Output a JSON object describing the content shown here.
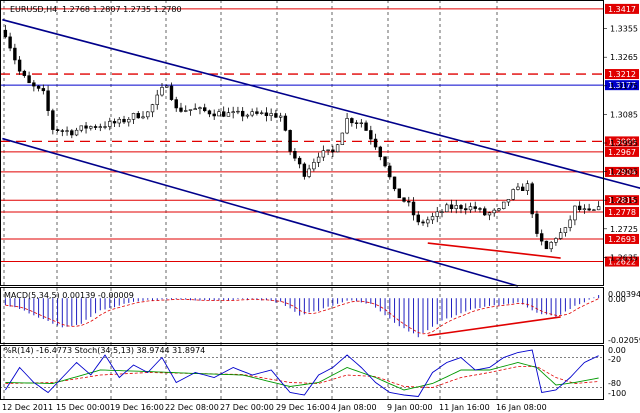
{
  "header": {
    "symbol": "EURUSD,H4",
    "ohlc": "1.2768 1.2807 1.2735 1.2780"
  },
  "macd": {
    "label": "MACD(5,34,5) 0.00139 -0.00009",
    "scale_top": "0.00394",
    "scale_zero": "0.00",
    "scale_bottom": "-0.02059"
  },
  "oscillator": {
    "label": "%R(14) -16.4773  Stoch(34,5,13) 38.9744 31.8974",
    "scale_top": "0.00",
    "scale_mid1": "-20",
    "scale_mid2": "-80",
    "scale_bottom": "-100"
  },
  "colors": {
    "background": "#ffffff",
    "candle": "#000000",
    "red_line": "#e00000",
    "blue_line": "#0000cc",
    "green_line": "#009900",
    "macd_hist": "#2020c0",
    "dark_red": "#cc0000",
    "dark_blue": "#00008b"
  },
  "chart_data": {
    "type": "candlestick",
    "price_ticks": [
      "1.3445",
      "1.3355",
      "1.3265",
      "1.3175",
      "1.3085",
      "1.2995",
      "1.2905",
      "1.2815",
      "1.2725",
      "1.2635",
      "1.2545"
    ],
    "price_range": [
      1.2545,
      1.3445
    ],
    "x_labels": [
      "12 Dec 2011",
      "15 Dec 00:00",
      "19 Dec 16:00",
      "22 Dec 08:00",
      "27 Dec 00:00",
      "29 Dec 16:00",
      "4 Jan 08:00",
      "9 Jan 00:00",
      "11 Jan 16:00",
      "16 Jan 08:00"
    ],
    "levels": [
      {
        "value": 1.3417,
        "label": "1.3417",
        "color": "#e00000",
        "style": "solid"
      },
      {
        "value": 1.3212,
        "label": "1.3212",
        "color": "#e00000",
        "style": "dashed"
      },
      {
        "value": 1.3177,
        "label": "1.3177",
        "color": "#0000cc",
        "style": "solid"
      },
      {
        "value": 1.3,
        "label": "1.3000",
        "color": "#e00000",
        "style": "dashed"
      },
      {
        "value": 1.2967,
        "label": "1.2967",
        "color": "#e00000",
        "style": "solid"
      },
      {
        "value": 1.2904,
        "label": "1.2904",
        "color": "#e00000",
        "style": "solid"
      },
      {
        "value": 1.2815,
        "label": "1.2815",
        "color": "#e00000",
        "style": "solid"
      },
      {
        "value": 1.2778,
        "label": "1.2778",
        "color": "#e00000",
        "style": "solid"
      },
      {
        "value": 1.2693,
        "label": "1.2693",
        "color": "#e00000",
        "style": "solid"
      },
      {
        "value": 1.2622,
        "label": "1.2622",
        "color": "#e00000",
        "style": "solid"
      }
    ],
    "channel_upper": [
      [
        0,
        1.3383
      ],
      [
        136,
        1.2844
      ]
    ],
    "channel_lower": [
      [
        0,
        1.3009
      ],
      [
        108,
        1.2545
      ]
    ],
    "divergence_price": [
      [
        89,
        1.268
      ],
      [
        117,
        1.2633
      ]
    ],
    "waypoints": [
      [
        0,
        1.334
      ],
      [
        3,
        1.322
      ],
      [
        5,
        1.318
      ],
      [
        8,
        1.315
      ],
      [
        10,
        1.304
      ],
      [
        14,
        1.303
      ],
      [
        17,
        1.3045
      ],
      [
        20,
        1.305
      ],
      [
        24,
        1.306
      ],
      [
        27,
        1.308
      ],
      [
        30,
        1.309
      ],
      [
        34,
        1.3185
      ],
      [
        36,
        1.31
      ],
      [
        40,
        1.31
      ],
      [
        44,
        1.309
      ],
      [
        48,
        1.3085
      ],
      [
        52,
        1.3085
      ],
      [
        56,
        1.3085
      ],
      [
        58,
        1.308
      ],
      [
        60,
        1.297
      ],
      [
        63,
        1.29
      ],
      [
        66,
        1.296
      ],
      [
        69,
        1.2965
      ],
      [
        72,
        1.307
      ],
      [
        75,
        1.306
      ],
      [
        78,
        1.299
      ],
      [
        80,
        1.293
      ],
      [
        82,
        1.284
      ],
      [
        85,
        1.28
      ],
      [
        87,
        1.274
      ],
      [
        90,
        1.276
      ],
      [
        93,
        1.279
      ],
      [
        96,
        1.2795
      ],
      [
        99,
        1.279
      ],
      [
        101,
        1.277
      ],
      [
        104,
        1.278
      ],
      [
        107,
        1.284
      ],
      [
        110,
        1.286
      ],
      [
        112,
        1.27
      ],
      [
        114,
        1.266
      ],
      [
        116,
        1.27
      ],
      [
        118,
        1.272
      ],
      [
        120,
        1.279
      ],
      [
        123,
        1.2775
      ],
      [
        125,
        1.2785
      ]
    ],
    "macd_waypoints": [
      [
        0,
        -0.003
      ],
      [
        6,
        -0.008
      ],
      [
        12,
        -0.014
      ],
      [
        16,
        -0.012
      ],
      [
        20,
        -0.006
      ],
      [
        26,
        -0.0025
      ],
      [
        30,
        -0.001
      ],
      [
        36,
        -0.0005
      ],
      [
        44,
        -0.001
      ],
      [
        52,
        -0.0005
      ],
      [
        58,
        -0.002
      ],
      [
        62,
        -0.008
      ],
      [
        66,
        -0.006
      ],
      [
        72,
        -0.001
      ],
      [
        77,
        -0.003
      ],
      [
        82,
        -0.012
      ],
      [
        87,
        -0.0185
      ],
      [
        92,
        -0.011
      ],
      [
        97,
        -0.006
      ],
      [
        102,
        -0.004
      ],
      [
        108,
        -0.002
      ],
      [
        112,
        -0.007
      ],
      [
        116,
        -0.009
      ],
      [
        120,
        -0.004
      ],
      [
        125,
        0.0014
      ]
    ],
    "macd_range": [
      -0.02059,
      0.00394
    ],
    "macd_signal_lag": 3,
    "macd_divergence": [
      [
        89,
        -0.018
      ],
      [
        117,
        -0.009
      ]
    ],
    "wpr_waypoints": [
      [
        0,
        -85
      ],
      [
        3,
        -40
      ],
      [
        6,
        -70
      ],
      [
        9,
        -90
      ],
      [
        12,
        -60
      ],
      [
        15,
        -30
      ],
      [
        18,
        -55
      ],
      [
        21,
        -15
      ],
      [
        24,
        -60
      ],
      [
        27,
        -35
      ],
      [
        30,
        -50
      ],
      [
        33,
        -20
      ],
      [
        36,
        -70
      ],
      [
        40,
        -50
      ],
      [
        44,
        -60
      ],
      [
        48,
        -40
      ],
      [
        52,
        -55
      ],
      [
        56,
        -45
      ],
      [
        60,
        -90
      ],
      [
        63,
        -95
      ],
      [
        66,
        -55
      ],
      [
        69,
        -40
      ],
      [
        72,
        -15
      ],
      [
        75,
        -40
      ],
      [
        78,
        -70
      ],
      [
        81,
        -90
      ],
      [
        84,
        -95
      ],
      [
        87,
        -98
      ],
      [
        90,
        -50
      ],
      [
        93,
        -30
      ],
      [
        96,
        -20
      ],
      [
        99,
        -45
      ],
      [
        102,
        -40
      ],
      [
        105,
        -20
      ],
      [
        108,
        -10
      ],
      [
        111,
        -5
      ],
      [
        113,
        -90
      ],
      [
        116,
        -85
      ],
      [
        119,
        -60
      ],
      [
        122,
        -30
      ],
      [
        125,
        -16.4773
      ]
    ],
    "stoch_main_waypoints": [
      [
        0,
        -70
      ],
      [
        10,
        -72
      ],
      [
        20,
        -45
      ],
      [
        30,
        -48
      ],
      [
        40,
        -52
      ],
      [
        50,
        -55
      ],
      [
        60,
        -78
      ],
      [
        66,
        -70
      ],
      [
        72,
        -40
      ],
      [
        78,
        -60
      ],
      [
        84,
        -85
      ],
      [
        90,
        -72
      ],
      [
        96,
        -45
      ],
      [
        102,
        -45
      ],
      [
        108,
        -30
      ],
      [
        112,
        -40
      ],
      [
        116,
        -75
      ],
      [
        120,
        -70
      ],
      [
        125,
        -61
      ]
    ],
    "stoch_signal_waypoints": [
      [
        0,
        -72
      ],
      [
        10,
        -70
      ],
      [
        20,
        -55
      ],
      [
        30,
        -50
      ],
      [
        40,
        -52
      ],
      [
        50,
        -54
      ],
      [
        60,
        -70
      ],
      [
        66,
        -72
      ],
      [
        72,
        -55
      ],
      [
        78,
        -58
      ],
      [
        84,
        -78
      ],
      [
        90,
        -80
      ],
      [
        96,
        -60
      ],
      [
        102,
        -50
      ],
      [
        108,
        -38
      ],
      [
        112,
        -38
      ],
      [
        116,
        -60
      ],
      [
        120,
        -72
      ],
      [
        125,
        -68
      ]
    ],
    "osc_range": [
      -105,
      5
    ]
  }
}
